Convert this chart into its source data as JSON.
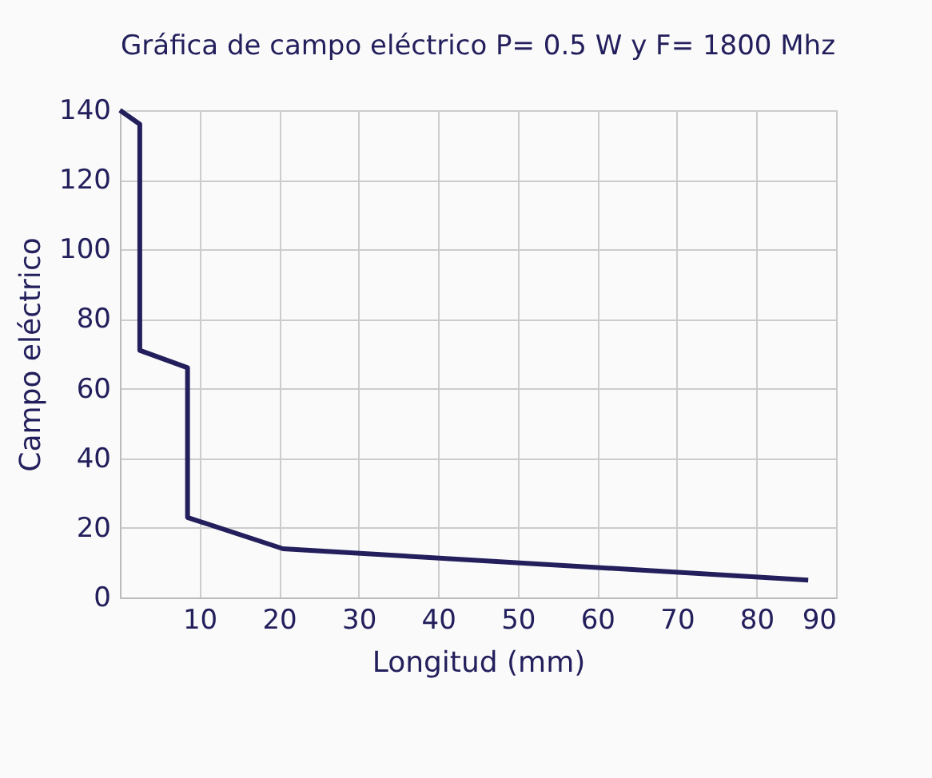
{
  "chart_data": {
    "type": "line",
    "title": "Gráfica de campo eléctrico P= 0.5 W y F= 1800 Mhz",
    "xlabel": "Longitud (mm)",
    "ylabel": "Campo eléctrico",
    "x": [
      0,
      2.5,
      2.5,
      8.5,
      8.5,
      20.5,
      86.5
    ],
    "series": [
      {
        "color": "#231f5c",
        "values": [
          140,
          136,
          71,
          66,
          23,
          14,
          5
        ]
      }
    ],
    "xlim": [
      0,
      90
    ],
    "xticks": [
      10,
      20,
      30,
      40,
      50,
      60,
      70,
      80,
      90
    ],
    "ylim": [
      0,
      140
    ],
    "yticks": [
      0,
      20,
      40,
      60,
      80,
      100,
      120,
      140
    ],
    "grid": true,
    "marker": "none",
    "line_style": "solid"
  }
}
